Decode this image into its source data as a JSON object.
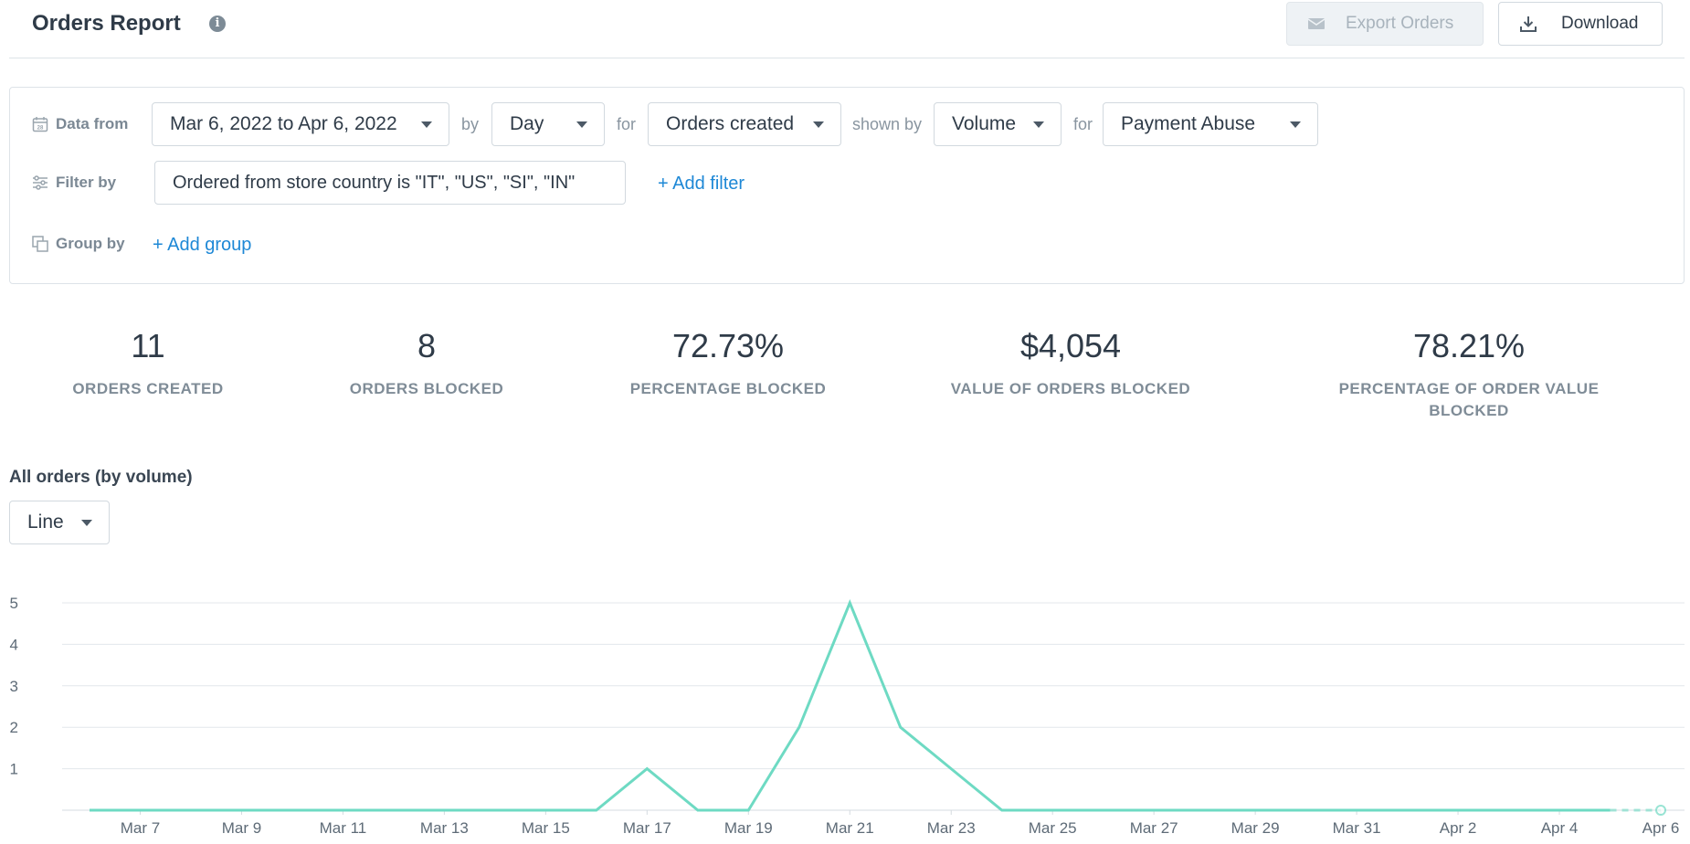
{
  "header": {
    "title": "Orders Report",
    "export_label": "Export Orders",
    "download_label": "Download"
  },
  "filters": {
    "data_from_label": "Data from",
    "date_range": "Mar 6, 2022 to Apr 6, 2022",
    "by_label": "by",
    "granularity": "Day",
    "for_label": "for",
    "metric": "Orders created",
    "shown_by_label": "shown by",
    "measure": "Volume",
    "for2_label": "for",
    "category": "Payment Abuse",
    "filter_by_label": "Filter by",
    "filter_value": "Ordered from store country is \"IT\", \"US\", \"SI\", \"IN\"",
    "add_filter": "+ Add filter",
    "group_by_label": "Group by",
    "add_group": "+ Add group"
  },
  "stats": [
    {
      "value": "11",
      "label": "ORDERS CREATED"
    },
    {
      "value": "8",
      "label": "ORDERS BLOCKED"
    },
    {
      "value": "72.73%",
      "label": "PERCENTAGE BLOCKED"
    },
    {
      "value": "$4,054",
      "label": "VALUE OF ORDERS BLOCKED"
    },
    {
      "value": "78.21%",
      "label": "PERCENTAGE OF ORDER VALUE BLOCKED"
    }
  ],
  "chart_section": {
    "title": "All orders (by volume)",
    "chart_type_label": "Line"
  },
  "chart_data": {
    "type": "line",
    "title": "",
    "xlabel": "",
    "ylabel": "",
    "ylim": [
      0,
      5
    ],
    "yticks": [
      1,
      2,
      3,
      4,
      5
    ],
    "grid": true,
    "color": "#6edac3",
    "x": [
      "Mar 6",
      "Mar 7",
      "Mar 8",
      "Mar 9",
      "Mar 10",
      "Mar 11",
      "Mar 12",
      "Mar 13",
      "Mar 14",
      "Mar 15",
      "Mar 16",
      "Mar 17",
      "Mar 18",
      "Mar 19",
      "Mar 20",
      "Mar 21",
      "Mar 22",
      "Mar 23",
      "Mar 24",
      "Mar 25",
      "Mar 26",
      "Mar 27",
      "Mar 28",
      "Mar 29",
      "Mar 30",
      "Mar 31",
      "Apr 1",
      "Apr 2",
      "Apr 3",
      "Apr 4",
      "Apr 5",
      "Apr 6"
    ],
    "x_tick_labels": [
      "Mar 7",
      "Mar 9",
      "Mar 11",
      "Mar 13",
      "Mar 15",
      "Mar 17",
      "Mar 19",
      "Mar 21",
      "Mar 23",
      "Mar 25",
      "Mar 27",
      "Mar 29",
      "Mar 31",
      "Apr 2",
      "Apr 4",
      "Apr 6"
    ],
    "series": [
      {
        "values": [
          0,
          0,
          0,
          0,
          0,
          0,
          0,
          0,
          0,
          0,
          0,
          1,
          0,
          0,
          2,
          5,
          2,
          1,
          0,
          0,
          0,
          0,
          0,
          0,
          0,
          0,
          0,
          0,
          0,
          0,
          0,
          0
        ]
      }
    ]
  }
}
